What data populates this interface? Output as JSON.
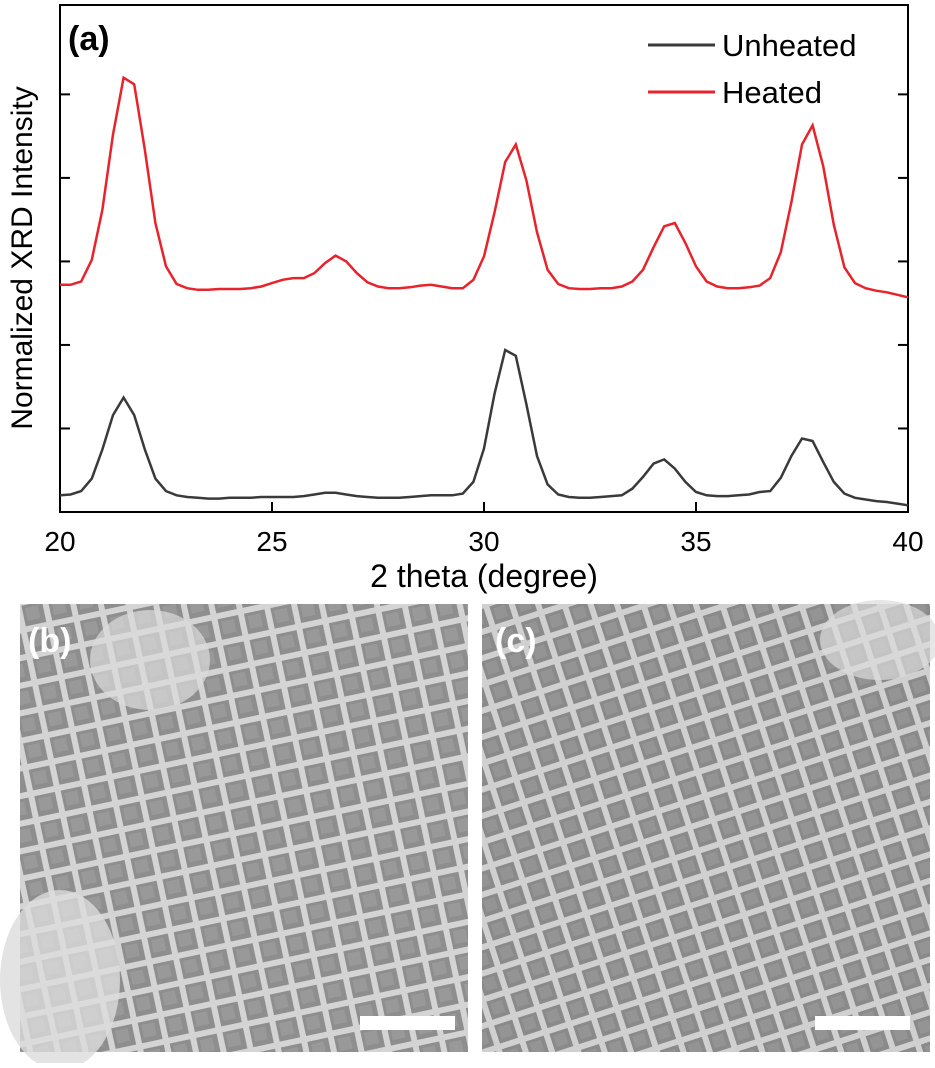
{
  "chart_data": {
    "type": "line",
    "panel_label": "(a)",
    "xlabel": "2 theta (degree)",
    "ylabel": "Normalized XRD Intensity",
    "x": [
      20,
      20.25,
      20.5,
      20.75,
      21,
      21.25,
      21.5,
      21.75,
      22,
      22.25,
      22.5,
      22.75,
      23,
      23.25,
      23.5,
      23.75,
      24,
      24.25,
      24.5,
      24.75,
      25,
      25.25,
      25.5,
      25.75,
      26,
      26.25,
      26.5,
      26.75,
      27,
      27.25,
      27.5,
      27.75,
      28,
      28.25,
      28.5,
      28.75,
      29,
      29.25,
      29.5,
      29.75,
      30,
      30.25,
      30.5,
      30.75,
      31,
      31.25,
      31.5,
      31.75,
      32,
      32.25,
      32.5,
      32.75,
      33,
      33.25,
      33.5,
      33.75,
      34,
      34.25,
      34.5,
      34.75,
      35,
      35.25,
      35.5,
      35.75,
      36,
      36.25,
      36.5,
      36.75,
      37,
      37.25,
      37.5,
      37.75,
      38,
      38.25,
      38.5,
      38.75,
      39,
      39.25,
      39.5,
      39.75,
      40
    ],
    "series": [
      {
        "name": "Unheated",
        "color": "#3a3a3a",
        "values": [
          0.2,
          0.21,
          0.25,
          0.4,
          0.75,
          1.16,
          1.37,
          1.16,
          0.75,
          0.4,
          0.25,
          0.2,
          0.18,
          0.17,
          0.16,
          0.16,
          0.17,
          0.17,
          0.17,
          0.18,
          0.18,
          0.18,
          0.18,
          0.19,
          0.21,
          0.23,
          0.23,
          0.21,
          0.19,
          0.18,
          0.17,
          0.17,
          0.17,
          0.18,
          0.19,
          0.2,
          0.2,
          0.2,
          0.22,
          0.36,
          0.76,
          1.42,
          1.94,
          1.87,
          1.29,
          0.67,
          0.33,
          0.21,
          0.18,
          0.17,
          0.17,
          0.18,
          0.19,
          0.2,
          0.28,
          0.42,
          0.58,
          0.63,
          0.52,
          0.36,
          0.24,
          0.2,
          0.19,
          0.19,
          0.2,
          0.21,
          0.24,
          0.25,
          0.41,
          0.67,
          0.88,
          0.85,
          0.6,
          0.36,
          0.22,
          0.17,
          0.15,
          0.13,
          0.12,
          0.1,
          0.08
        ]
      },
      {
        "name": "Heated",
        "color": "#e8232b",
        "values": [
          2.72,
          2.72,
          2.76,
          3.02,
          3.62,
          4.52,
          5.2,
          5.12,
          4.34,
          3.46,
          2.94,
          2.73,
          2.68,
          2.66,
          2.66,
          2.67,
          2.67,
          2.67,
          2.68,
          2.7,
          2.74,
          2.78,
          2.8,
          2.8,
          2.86,
          2.98,
          3.07,
          3.0,
          2.86,
          2.75,
          2.7,
          2.68,
          2.68,
          2.69,
          2.71,
          2.72,
          2.7,
          2.68,
          2.68,
          2.78,
          3.06,
          3.59,
          4.19,
          4.4,
          3.97,
          3.35,
          2.9,
          2.73,
          2.68,
          2.67,
          2.67,
          2.68,
          2.68,
          2.7,
          2.76,
          2.9,
          3.17,
          3.42,
          3.46,
          3.22,
          2.94,
          2.76,
          2.7,
          2.68,
          2.68,
          2.69,
          2.71,
          2.8,
          3.11,
          3.71,
          4.4,
          4.63,
          4.14,
          3.44,
          2.93,
          2.74,
          2.68,
          2.65,
          2.63,
          2.6,
          2.57
        ]
      }
    ],
    "xlim": [
      20,
      40
    ],
    "xticks": [
      20,
      25,
      30,
      35,
      40
    ],
    "ylim": [
      0,
      6.07
    ],
    "yticks": [
      1,
      2,
      3,
      4,
      5
    ],
    "legend": "upper right"
  },
  "panels": [
    {
      "label": "(b)"
    },
    {
      "label": "(c)"
    }
  ]
}
